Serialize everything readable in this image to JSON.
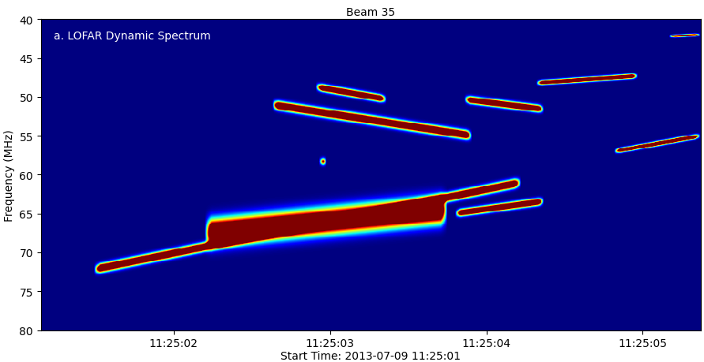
{
  "chart_data": {
    "type": "dynamic_spectrum",
    "title": "Beam 35",
    "annotation": "a. LOFAR Dynamic Spectrum",
    "x_label": "Start Time: 2013-07-09 11:25:01",
    "y_label": "Frequency (MHz)",
    "xlim": [
      0.15,
      4.37
    ],
    "xticks": [
      {
        "value": 1,
        "label": "11:25:02"
      },
      {
        "value": 2,
        "label": "11:25:03"
      },
      {
        "value": 3,
        "label": "11:25:04"
      },
      {
        "value": 4,
        "label": "11:25:05"
      }
    ],
    "ylim": [
      80,
      40
    ],
    "yticks": [
      40,
      45,
      50,
      55,
      60,
      65,
      70,
      75,
      80
    ],
    "bursts": [
      {
        "start": [
          0.49,
          72.2
        ],
        "end": [
          3.22,
          61.0
        ],
        "bandwidth": 1.0
      },
      {
        "start": [
          1.2,
          67.5
        ],
        "end": [
          2.75,
          64.5
        ],
        "bandwidth": 3.0
      },
      {
        "start": [
          1.63,
          51.0
        ],
        "end": [
          2.91,
          55.0
        ],
        "bandwidth": 1.0
      },
      {
        "start": [
          1.91,
          48.7
        ],
        "end": [
          2.36,
          50.3
        ],
        "bandwidth": 0.8
      },
      {
        "start": [
          2.86,
          50.3
        ],
        "end": [
          3.37,
          51.6
        ],
        "bandwidth": 0.8
      },
      {
        "start": [
          3.32,
          48.2
        ],
        "end": [
          3.97,
          47.3
        ],
        "bandwidth": 0.5
      },
      {
        "start": [
          3.82,
          57.0
        ],
        "end": [
          4.37,
          55.0
        ],
        "bandwidth": 0.5
      },
      {
        "start": [
          1.93,
          58.3
        ],
        "end": [
          1.98,
          58.3
        ],
        "bandwidth": 0.8
      },
      {
        "start": [
          4.17,
          42.2
        ],
        "end": [
          4.37,
          42.0
        ],
        "bandwidth": 0.3
      },
      {
        "start": [
          2.8,
          65.0
        ],
        "end": [
          3.37,
          63.4
        ],
        "bandwidth": 0.8
      }
    ]
  }
}
